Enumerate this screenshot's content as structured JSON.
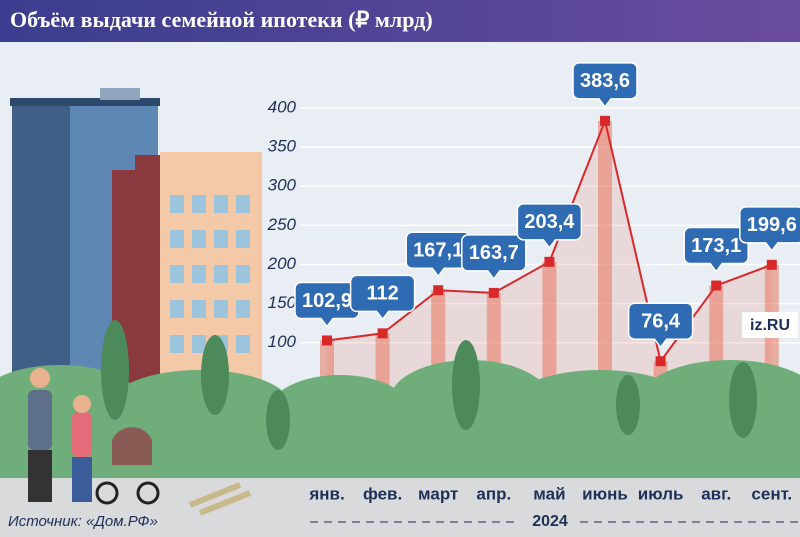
{
  "chart_data": {
    "type": "line",
    "title": "Объём выдачи семейной ипотеки (₽ млрд)",
    "categories": [
      "янв.",
      "фев.",
      "март",
      "апр.",
      "май",
      "июнь",
      "июль",
      "авг.",
      "сент."
    ],
    "x_axis_label": "2024",
    "series": [
      {
        "name": "Объём выдачи семейной ипотеки",
        "color": "#d8282a",
        "values": [
          102.9,
          112,
          167.1,
          163.7,
          203.4,
          383.6,
          76.4,
          173.1,
          199.6
        ],
        "value_labels": [
          "102,9",
          "112",
          "167,1",
          "163,7",
          "203,4",
          "383,6",
          "76,4",
          "173,1",
          "199,6"
        ]
      }
    ],
    "ylim": [
      0,
      400
    ],
    "yticks": [
      100,
      150,
      200,
      250,
      300,
      350,
      400
    ],
    "grid": true,
    "source": "Источник: «Дом.РФ»",
    "logo": "iz.RU"
  }
}
